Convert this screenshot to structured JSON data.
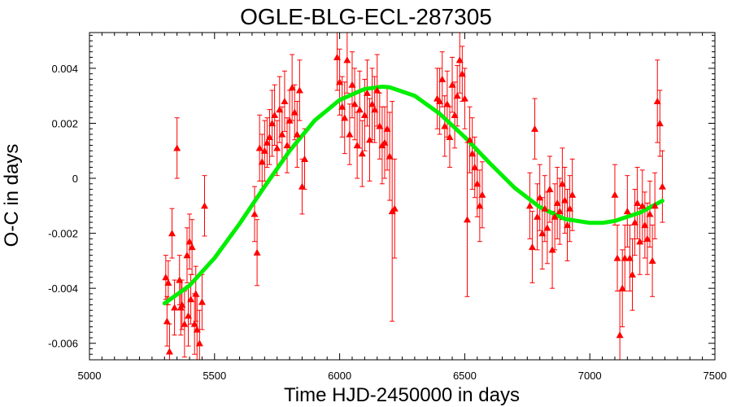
{
  "chart_data": {
    "type": "scatter",
    "title": "OGLE-BLG-ECL-287305",
    "xlabel": "Time HJD-2450000 in days",
    "ylabel": "O-C in days",
    "xlim": [
      5000,
      7500
    ],
    "ylim": [
      -0.0066,
      0.0053
    ],
    "xticks": [
      5000,
      5500,
      6000,
      6500,
      7000,
      7500
    ],
    "xtick_labels": [
      "5000",
      "5500",
      "6000",
      "6500",
      "7000",
      "7500"
    ],
    "yticks": [
      -0.006,
      -0.004,
      -0.002,
      0,
      0.002,
      0.004
    ],
    "ytick_labels": [
      "-0.006",
      "-0.004",
      "-0.002",
      "0",
      "0.002",
      "0.004"
    ],
    "grid": false,
    "colors": {
      "points": "#ff0000",
      "fit": "#00ee00",
      "frame": "#000000"
    },
    "series": [
      {
        "kind": "points_with_errorbars",
        "x": [
          5305,
          5310,
          5315,
          5320,
          5330,
          5340,
          5350,
          5360,
          5365,
          5370,
          5380,
          5390,
          5395,
          5400,
          5405,
          5410,
          5420,
          5425,
          5430,
          5440,
          5450,
          5460,
          5660,
          5670,
          5680,
          5690,
          5700,
          5710,
          5720,
          5730,
          5740,
          5750,
          5760,
          5770,
          5780,
          5790,
          5800,
          5810,
          5820,
          5830,
          5840,
          5850,
          5860,
          5990,
          6000,
          6010,
          6020,
          6030,
          6040,
          6050,
          6060,
          6070,
          6080,
          6090,
          6100,
          6110,
          6120,
          6130,
          6140,
          6150,
          6160,
          6170,
          6180,
          6190,
          6200,
          6210,
          6220,
          6390,
          6400,
          6410,
          6420,
          6430,
          6440,
          6450,
          6460,
          6470,
          6480,
          6490,
          6500,
          6510,
          6520,
          6530,
          6540,
          6550,
          6560,
          6570,
          6760,
          6770,
          6780,
          6790,
          6800,
          6810,
          6820,
          6830,
          6840,
          6850,
          6860,
          6870,
          6880,
          6890,
          6900,
          6910,
          6920,
          6930,
          7100,
          7110,
          7120,
          7130,
          7140,
          7150,
          7160,
          7170,
          7180,
          7190,
          7200,
          7210,
          7220,
          7230,
          7240,
          7250,
          7260,
          7270,
          7280,
          7290
        ],
        "y": [
          -0.0036,
          -0.0052,
          -0.0038,
          -0.0063,
          -0.002,
          -0.0047,
          0.0011,
          -0.0037,
          -0.0047,
          -0.0046,
          -0.0053,
          -0.0028,
          -0.005,
          -0.0023,
          -0.0044,
          -0.0025,
          -0.0053,
          -0.0042,
          -0.0055,
          -0.006,
          -0.0045,
          -0.001,
          -0.0013,
          -0.0027,
          0.0011,
          0.0006,
          0.001,
          0.0013,
          0.0015,
          0.002,
          0.0023,
          0.0011,
          0.0025,
          0.0016,
          0.0028,
          0.0012,
          0.0021,
          0.0033,
          0.0024,
          0.0016,
          0.0032,
          -0.0003,
          0.0007,
          0.0044,
          0.0035,
          0.0026,
          0.0022,
          0.0043,
          0.0016,
          0.0034,
          0.0027,
          0.0012,
          0.0025,
          0.0009,
          0.0023,
          0.0031,
          0.0014,
          0.0027,
          0.0025,
          0.0032,
          0.0019,
          0.0012,
          0.0013,
          0.0018,
          0.0008,
          -0.0012,
          -0.0011,
          0.0029,
          0.0028,
          0.0036,
          0.0019,
          0.0027,
          0.0015,
          0.0034,
          0.0023,
          0.003,
          0.0043,
          0.0038,
          0.0029,
          -0.0015,
          0.0014,
          0.0009,
          0.0004,
          -0.0002,
          -0.001,
          -0.0006,
          -0.001,
          -0.0025,
          0.0018,
          -0.0014,
          -0.0007,
          -0.002,
          -0.0011,
          -0.0018,
          -0.0004,
          -0.0026,
          -0.0014,
          -0.0009,
          -0.0012,
          -0.0002,
          -0.0008,
          -0.0017,
          -0.0011,
          -0.0006,
          -0.0006,
          -0.0029,
          -0.0057,
          -0.004,
          -0.0029,
          -0.0012,
          -0.0029,
          -0.0035,
          -0.0016,
          -0.0009,
          -0.0023,
          -0.001,
          -0.0017,
          -0.0022,
          -0.0013,
          -0.003,
          -0.001,
          0.0028,
          0.002,
          -0.0003
        ],
        "yerr": [
          0.0008,
          0.0009,
          0.0008,
          0.001,
          0.0009,
          0.001,
          0.0011,
          0.0009,
          0.001,
          0.0009,
          0.0012,
          0.001,
          0.0011,
          0.001,
          0.0009,
          0.001,
          0.0011,
          0.001,
          0.0012,
          0.0012,
          0.001,
          0.0011,
          0.001,
          0.0012,
          0.0012,
          0.001,
          0.0011,
          0.0009,
          0.001,
          0.0012,
          0.0011,
          0.001,
          0.0012,
          0.001,
          0.0011,
          0.001,
          0.0011,
          0.0012,
          0.001,
          0.0012,
          0.0011,
          0.001,
          0.0011,
          0.0012,
          0.0012,
          0.0011,
          0.0013,
          0.0012,
          0.0011,
          0.0012,
          0.0013,
          0.0012,
          0.0014,
          0.0012,
          0.0013,
          0.0012,
          0.0015,
          0.0013,
          0.0012,
          0.0013,
          0.0012,
          0.0014,
          0.0013,
          0.0015,
          0.0016,
          0.004,
          0.0018,
          0.0011,
          0.0012,
          0.001,
          0.0011,
          0.0012,
          0.0011,
          0.001,
          0.0012,
          0.0011,
          0.0012,
          0.001,
          0.0011,
          0.0028,
          0.0012,
          0.0013,
          0.0011,
          0.0012,
          0.0013,
          0.0012,
          0.0012,
          0.0013,
          0.0011,
          0.0012,
          0.0012,
          0.0013,
          0.0012,
          0.0013,
          0.0012,
          0.0014,
          0.0012,
          0.0013,
          0.0012,
          0.0013,
          0.0012,
          0.0013,
          0.0012,
          0.0013,
          0.0011,
          0.0012,
          0.0016,
          0.0014,
          0.0012,
          0.0013,
          0.0012,
          0.0013,
          0.0012,
          0.0013,
          0.0012,
          0.0013,
          0.0012,
          0.0013,
          0.0012,
          0.0013,
          0.0012,
          0.0015,
          0.0012,
          0.0013
        ]
      },
      {
        "kind": "fit_curve",
        "x": [
          5300,
          5400,
          5500,
          5600,
          5700,
          5800,
          5900,
          6000,
          6100,
          6170,
          6200,
          6300,
          6400,
          6500,
          6600,
          6700,
          6800,
          6900,
          7000,
          7050,
          7100,
          7200,
          7290
        ],
        "y": [
          -0.00455,
          -0.0039,
          -0.0029,
          -0.00165,
          -0.0003,
          0.001,
          0.0021,
          0.00285,
          0.00325,
          0.00333,
          0.00331,
          0.003,
          0.00235,
          0.0015,
          0.00055,
          -0.00035,
          -0.00105,
          -0.00148,
          -0.00162,
          -0.00162,
          -0.00155,
          -0.00125,
          -0.00082
        ]
      }
    ]
  }
}
